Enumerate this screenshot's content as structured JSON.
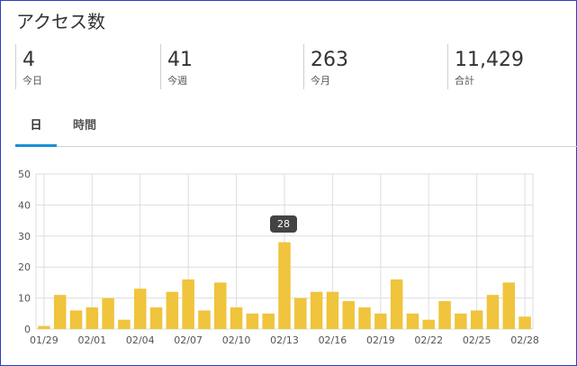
{
  "title": "アクセス数",
  "stats": [
    {
      "value": "4",
      "label": "今日"
    },
    {
      "value": "41",
      "label": "今週"
    },
    {
      "value": "263",
      "label": "今月"
    },
    {
      "value": "11,429",
      "label": "合計"
    }
  ],
  "tabs": [
    {
      "label": "日",
      "active": true
    },
    {
      "label": "時間",
      "active": false
    }
  ],
  "tooltip": {
    "label": "28"
  },
  "colors": {
    "bar": "#f0c43c",
    "tab_accent": "#1a8fd6",
    "frame": "#2b3fc7"
  },
  "chart_data": {
    "type": "bar",
    "categories": [
      "01/29",
      "01/30",
      "01/31",
      "02/01",
      "02/02",
      "02/03",
      "02/04",
      "02/05",
      "02/06",
      "02/07",
      "02/08",
      "02/09",
      "02/10",
      "02/11",
      "02/12",
      "02/13",
      "02/14",
      "02/15",
      "02/16",
      "02/17",
      "02/18",
      "02/19",
      "02/20",
      "02/21",
      "02/22",
      "02/23",
      "02/24",
      "02/25",
      "02/26",
      "02/27",
      "02/28"
    ],
    "values": [
      1,
      11,
      6,
      7,
      10,
      3,
      13,
      7,
      12,
      16,
      6,
      15,
      7,
      5,
      5,
      28,
      10,
      12,
      12,
      9,
      7,
      5,
      16,
      5,
      3,
      9,
      5,
      6,
      11,
      15,
      4
    ],
    "x_tick_labels": [
      "01/29",
      "02/01",
      "02/04",
      "02/07",
      "02/10",
      "02/13",
      "02/16",
      "02/19",
      "02/22",
      "02/25",
      "02/28"
    ],
    "y_ticks": [
      "0",
      "10",
      "20",
      "30",
      "40",
      "50"
    ],
    "ylim": [
      0,
      50
    ],
    "grid": true,
    "highlight_index": 15
  }
}
